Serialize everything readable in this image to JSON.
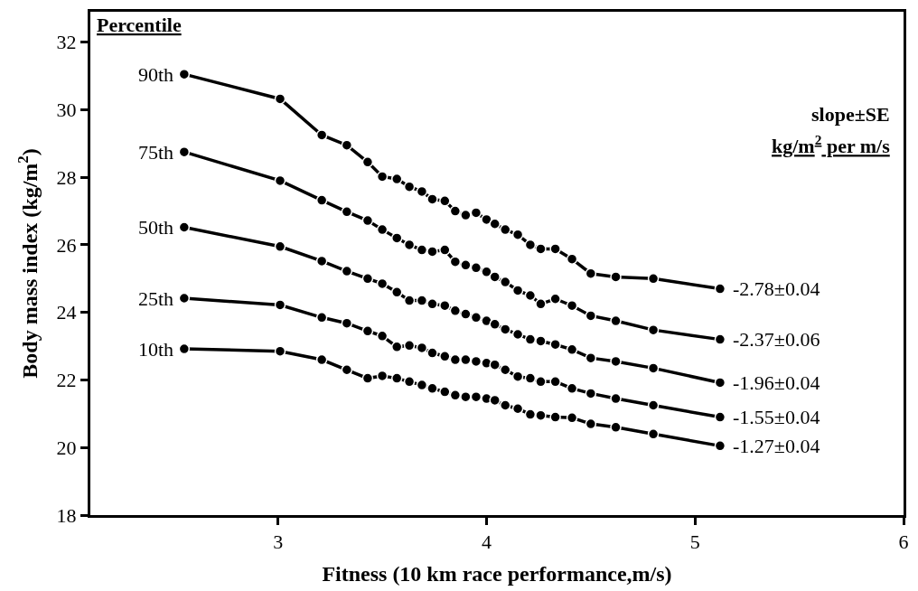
{
  "chart_data": {
    "type": "line",
    "xlabel": "Fitness (10 km race performance,m/s)",
    "ylabel": "Body mass index (kg/m$^{2}$)",
    "x": [
      2.55,
      3.01,
      3.21,
      3.33,
      3.43,
      3.5,
      3.57,
      3.63,
      3.69,
      3.74,
      3.8,
      3.85,
      3.9,
      3.95,
      4.0,
      4.04,
      4.09,
      4.15,
      4.21,
      4.26,
      4.33,
      4.41,
      4.5,
      4.62,
      4.8,
      5.12
    ],
    "series": [
      {
        "name": "90th",
        "color": "#000000",
        "values": [
          31.05,
          30.32,
          29.25,
          28.95,
          28.45,
          28.02,
          27.95,
          27.72,
          27.58,
          27.35,
          27.3,
          27.0,
          26.88,
          26.95,
          26.75,
          26.62,
          26.45,
          26.3,
          26.0,
          25.88,
          25.88,
          25.58,
          25.15,
          25.05,
          25.0,
          24.7
        ]
      },
      {
        "name": "75th",
        "color": "#000000",
        "values": [
          28.75,
          27.9,
          27.32,
          26.98,
          26.72,
          26.45,
          26.2,
          26.0,
          25.85,
          25.8,
          25.85,
          25.5,
          25.4,
          25.32,
          25.2,
          25.05,
          24.9,
          24.65,
          24.5,
          24.25,
          24.4,
          24.2,
          23.9,
          23.75,
          23.48,
          23.2
        ]
      },
      {
        "name": "50th",
        "color": "#000000",
        "values": [
          26.52,
          25.95,
          25.52,
          25.22,
          25.0,
          24.85,
          24.6,
          24.35,
          24.35,
          24.25,
          24.2,
          24.05,
          23.95,
          23.85,
          23.75,
          23.65,
          23.5,
          23.35,
          23.2,
          23.15,
          23.05,
          22.9,
          22.65,
          22.55,
          22.35,
          21.92
        ]
      },
      {
        "name": "25th",
        "color": "#000000",
        "values": [
          24.42,
          24.22,
          23.85,
          23.68,
          23.45,
          23.3,
          22.98,
          23.02,
          22.95,
          22.8,
          22.7,
          22.6,
          22.6,
          22.55,
          22.5,
          22.45,
          22.3,
          22.1,
          22.05,
          21.95,
          21.95,
          21.75,
          21.6,
          21.45,
          21.25,
          20.9
        ]
      },
      {
        "name": "10th",
        "color": "#000000",
        "values": [
          22.92,
          22.85,
          22.6,
          22.3,
          22.05,
          22.12,
          22.05,
          21.95,
          21.85,
          21.75,
          21.65,
          21.55,
          21.5,
          21.5,
          21.45,
          21.4,
          21.25,
          21.15,
          20.98,
          20.95,
          20.9,
          20.88,
          20.7,
          20.6,
          20.4,
          20.05
        ]
      }
    ],
    "annotations": [
      "Percentile",
      "slope±SE",
      "kg/m$^{2}$ per m/s",
      "-2.78±0.04",
      "-2.37±0.06",
      "-1.96±0.04",
      "-1.55±0.04",
      "-1.27±0.04"
    ],
    "xlim": [
      2.1,
      6
    ],
    "ylim": [
      18,
      32.9
    ],
    "xticks": [
      3,
      4,
      5,
      6
    ],
    "yticks": [
      18,
      20,
      22,
      24,
      26,
      28,
      30,
      32
    ],
    "grid": false,
    "legend": false,
    "marker": "circle",
    "line_style": "solid"
  }
}
